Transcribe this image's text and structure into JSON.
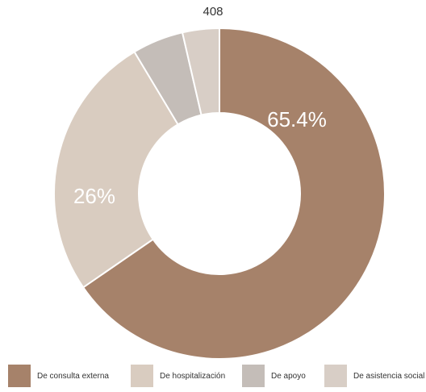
{
  "chart_data": {
    "type": "pie",
    "total_label": "408",
    "categories": [
      "De consulta externa",
      "De hospitalización",
      "De apoyo",
      "De asistencia social"
    ],
    "values": [
      65.4,
      26,
      5,
      3.6
    ],
    "data_labels": [
      "65.4%",
      "26%",
      "",
      ""
    ],
    "colors": [
      "#a6826a",
      "#d9ccc0",
      "#c4bdb8",
      "#d8cec6"
    ],
    "label_colors": [
      "#ffffff",
      "#ffffff",
      "#ffffff",
      "#ffffff"
    ],
    "legend_position": "bottom"
  }
}
